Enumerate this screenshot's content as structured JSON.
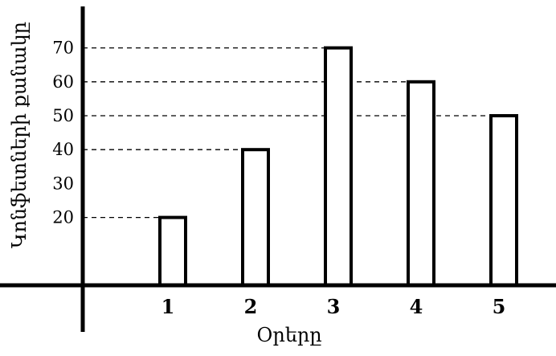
{
  "chart_data": {
    "type": "bar",
    "categories": [
      "1",
      "2",
      "3",
      "4",
      "5"
    ],
    "values": [
      20,
      40,
      70,
      60,
      50
    ],
    "xlabel": "Օրերը",
    "ylabel": "Կոնֆետների քանակը",
    "y_ticks": [
      20,
      30,
      40,
      50,
      60,
      70
    ],
    "ylim": [
      0,
      80
    ],
    "grid": false,
    "dashed_guides_to_bar_tops": true,
    "bar_fill": "#ffffff",
    "bar_stroke": "#000000"
  }
}
